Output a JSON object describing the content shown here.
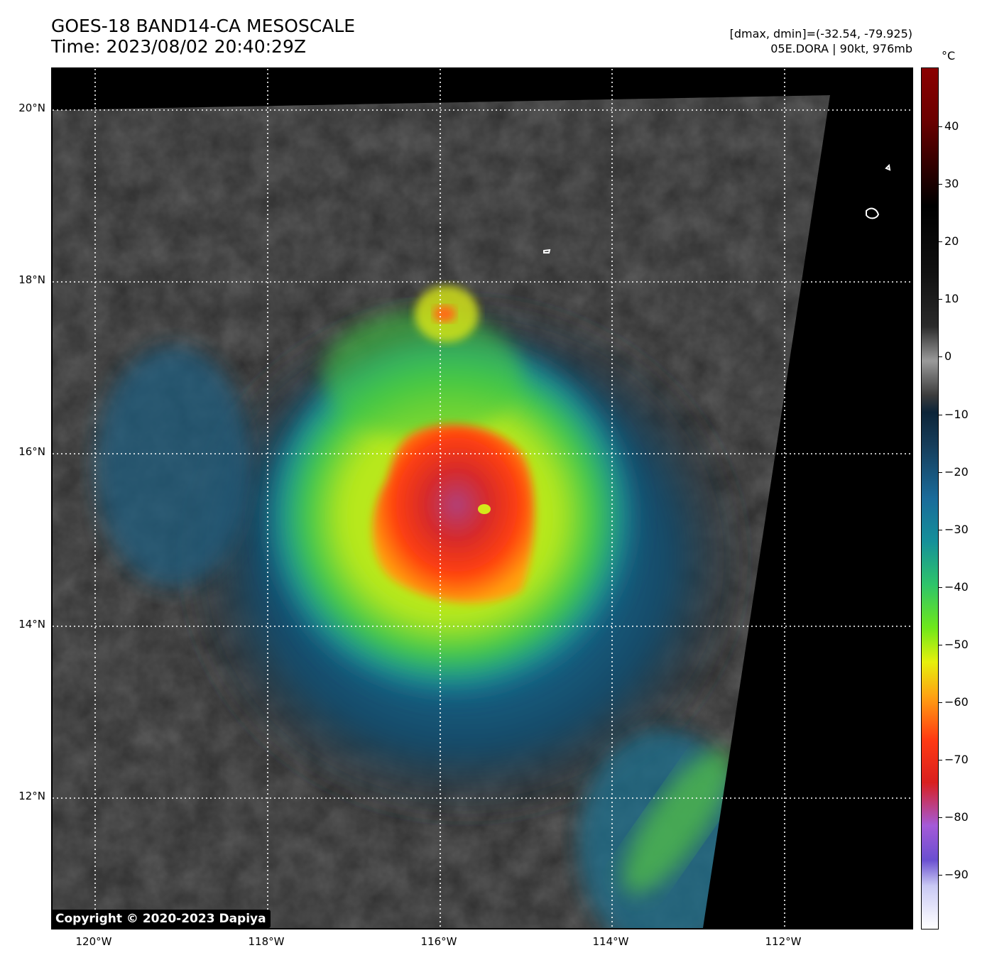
{
  "header": {
    "title_line1": "GOES-18 BAND14-CA MESOSCALE",
    "title_line2": "Time: 2023/08/02 20:40:29Z",
    "stats_line": "[dmax, dmin]=(-32.54, -79.925)",
    "storm_line": "05E.DORA | 90kt, 976mb"
  },
  "map": {
    "lat_labels": [
      "20°N",
      "18°N",
      "16°N",
      "14°N",
      "12°N"
    ],
    "lon_labels": [
      "120°W",
      "118°W",
      "116°W",
      "114°W",
      "112°W"
    ],
    "gridline_color": "#ffffff",
    "no_data_color": "#000000",
    "storm_center": {
      "lat": 15.3,
      "lon": -115.5
    }
  },
  "colorbar": {
    "unit": "°C",
    "ticks": [
      "40",
      "30",
      "20",
      "10",
      "0",
      "−10",
      "−20",
      "−30",
      "−40",
      "−50",
      "−60",
      "−70",
      "−80",
      "−90"
    ]
  },
  "copyright": "Copyright © 2020-2023 Dapiya"
}
